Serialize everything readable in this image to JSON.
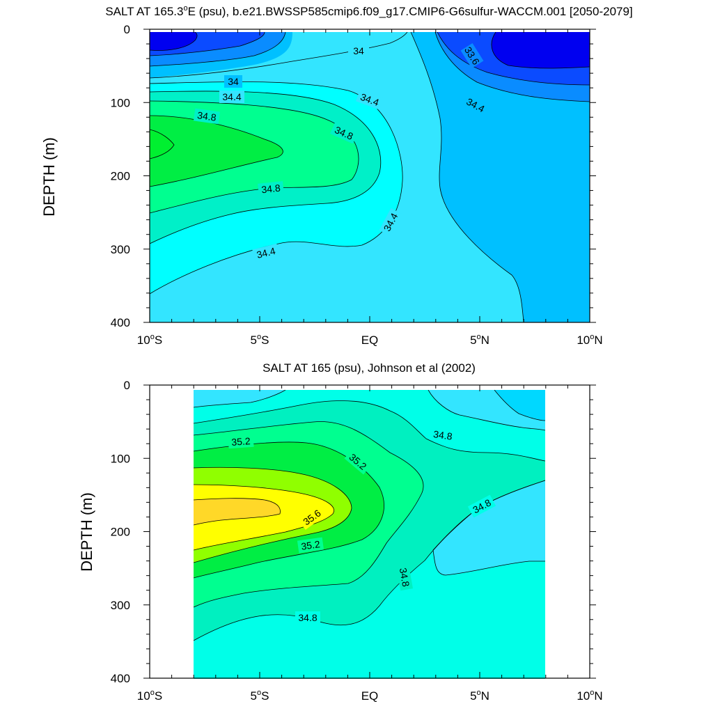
{
  "chart_data": [
    {
      "type": "contour",
      "title": "SALT AT 165.3°E (psu), b.e21.BWSSP585cmip6.f09_g17.CMIP6-G6sulfur-WACCM.001 [2050-2079]",
      "title_parts": {
        "pre": "SALT AT 165.3",
        "sup": "o",
        "post": "E (psu), b.e21.BWSSP585cmip6.f09_g17.CMIP6-G6sulfur-WACCM.001 [2050-2079]"
      },
      "ylabel": "DEPTH (m)",
      "x_range": [
        -10,
        10
      ],
      "y_range": [
        0,
        400
      ],
      "y_reversed": true,
      "x_ticks": [
        "10°S",
        "5°S",
        "EQ",
        "5°N",
        "10°N"
      ],
      "y_ticks": [
        "0",
        "100",
        "200",
        "300",
        "400"
      ],
      "data_lat_range": [
        -10,
        10
      ],
      "data_depth_range": [
        5,
        400
      ],
      "contour_levels": [
        33.6,
        33.8,
        34.0,
        34.2,
        34.4,
        34.6,
        34.8,
        35.0
      ],
      "contour_labels": [
        "34",
        "33.6",
        "34",
        "34.4",
        "34.4",
        "34.8",
        "34.8",
        "34.8",
        "34.4",
        "34.4"
      ],
      "fill_colors": [
        "#0000f0",
        "#0b4bff",
        "#0a8cff",
        "#00c0ff",
        "#33e5ff",
        "#00ffff",
        "#00f0c8",
        "#00ff90",
        "#00ee44"
      ]
    },
    {
      "type": "contour",
      "title": "SALT AT 165 (psu), Johnson et al (2002)",
      "ylabel": "DEPTH (m)",
      "x_range": [
        -10,
        10
      ],
      "y_range": [
        0,
        400
      ],
      "y_reversed": true,
      "x_ticks": [
        "10°S",
        "5°S",
        "EQ",
        "5°N",
        "10°N"
      ],
      "y_ticks": [
        "0",
        "100",
        "200",
        "300",
        "400"
      ],
      "data_lat_range": [
        -8,
        8
      ],
      "data_depth_range": [
        5,
        400
      ],
      "contour_levels": [
        34.4,
        34.6,
        34.8,
        35.0,
        35.2,
        35.4,
        35.6,
        35.8
      ],
      "contour_labels": [
        "35.2",
        "35.2",
        "34.8",
        "34.8",
        "35.6",
        "35.2",
        "34.8",
        "34.8"
      ],
      "fill_colors": [
        "#00d8ff",
        "#33e5ff",
        "#00ffe8",
        "#00f0c0",
        "#00ff90",
        "#00ee44",
        "#90ff00",
        "#ffff00",
        "#ffd828"
      ]
    }
  ]
}
